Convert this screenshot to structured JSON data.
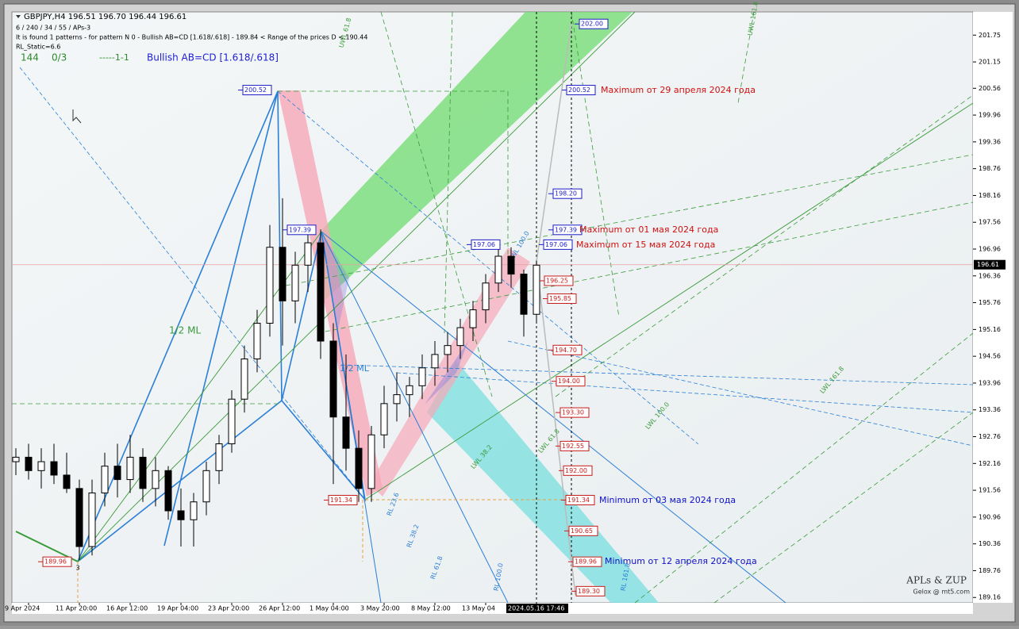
{
  "chart_data": {
    "type": "candlestick",
    "header": [
      "GBPJPY,H4  196.51 196.70 196.44 196.61",
      "6 / 240 / 34 / 55 / APs-3",
      "It is found 1 patterns  -  for pattern N 0 - Bullish AB=CD [1.618/.618] - 189.84 < Range of the prices D < 190.44",
      "RL_Static=6.6"
    ],
    "status": [
      "144",
      "0/3",
      "-----1-1",
      "Bullish AB=CD [1.618/.618]"
    ],
    "watermark": [
      "APLs & ZUP",
      "Gelox @ mt5.com"
    ],
    "line_labels": [
      "1/2 ML",
      "1/2 ML",
      "RL 23.6",
      "RL 38.2",
      "RL 61.8",
      "RL 100.0",
      "RL 161.8",
      "LWL 38.2",
      "LWL 61.8",
      "LWL 100.0",
      "LWL 161.8",
      "UWL 61.8",
      "UWL 161.8",
      "UWL 100.0"
    ],
    "categories": [
      null,
      "9 Apr 2024",
      null,
      null,
      null,
      "11 Apr 20:00",
      null,
      null,
      null,
      "16 Apr 12:00",
      null,
      null,
      null,
      "19 Apr 04:00",
      null,
      null,
      null,
      "23 Apr 20:00",
      null,
      null,
      null,
      "26 Apr 12:00",
      null,
      null,
      null,
      "1 May 04:00",
      null,
      null,
      null,
      "3 May 20:00",
      null,
      null,
      null,
      "8 May 12:00",
      null,
      null,
      null,
      "13 May 04",
      null,
      null,
      null,
      "2024.05.16 17:46"
    ],
    "open": [
      192.2,
      192.3,
      192.0,
      192.2,
      191.9,
      191.6,
      190.3,
      191.5,
      192.1,
      191.8,
      192.3,
      191.6,
      192.0,
      191.1,
      190.9,
      191.3,
      192.0,
      192.6,
      193.6,
      194.5,
      195.3,
      197.0,
      195.8,
      196.6,
      197.1,
      194.9,
      193.2,
      192.5,
      191.6,
      192.8,
      193.5,
      193.7,
      193.9,
      194.3,
      194.6,
      194.8,
      195.2,
      195.6,
      196.2,
      196.8,
      196.4,
      195.5
    ],
    "high": [
      192.5,
      192.6,
      192.5,
      192.6,
      192.4,
      191.8,
      191.8,
      192.4,
      192.6,
      192.8,
      192.5,
      192.3,
      192.1,
      191.6,
      191.5,
      192.2,
      192.8,
      193.8,
      194.8,
      195.6,
      197.5,
      198.1,
      196.9,
      197.4,
      197.4,
      195.3,
      194.6,
      192.9,
      193.0,
      193.9,
      194.2,
      194.1,
      194.6,
      194.9,
      195.1,
      195.4,
      195.8,
      196.4,
      197.0,
      197.0,
      196.5,
      196.7
    ],
    "low": [
      191.9,
      191.8,
      191.6,
      191.7,
      191.5,
      190.0,
      190.1,
      191.2,
      191.4,
      191.5,
      191.3,
      191.2,
      190.9,
      190.3,
      190.3,
      191.0,
      191.7,
      192.4,
      193.3,
      194.2,
      195.0,
      194.8,
      195.3,
      196.0,
      194.5,
      191.7,
      192.0,
      191.3,
      191.3,
      192.5,
      193.1,
      193.2,
      193.6,
      193.9,
      194.2,
      194.5,
      194.9,
      195.3,
      196.0,
      196.1,
      195.0,
      195.3
    ],
    "close": [
      192.3,
      192.0,
      192.2,
      191.9,
      191.6,
      190.3,
      191.5,
      192.1,
      191.8,
      192.3,
      191.6,
      192.0,
      191.1,
      190.9,
      191.3,
      192.0,
      192.6,
      193.6,
      194.5,
      195.3,
      197.0,
      195.8,
      196.6,
      197.1,
      194.9,
      193.2,
      192.5,
      191.6,
      192.8,
      193.5,
      193.7,
      193.9,
      194.3,
      194.6,
      194.8,
      195.2,
      195.6,
      196.2,
      196.8,
      196.4,
      195.5,
      196.6
    ],
    "ylim": [
      189.04,
      202.27
    ],
    "yticks": [
      201.75,
      201.15,
      200.56,
      199.96,
      199.36,
      198.76,
      198.16,
      197.56,
      196.96,
      196.36,
      195.76,
      195.16,
      194.56,
      193.96,
      193.36,
      192.76,
      192.16,
      191.56,
      190.96,
      190.36,
      189.76,
      189.16
    ],
    "current_price": 196.61,
    "upper_levels": [
      {
        "value": 202,
        "label": "202.00"
      },
      200.52,
      {
        "value": 198.2,
        "label": "198.20"
      },
      197.39,
      197.06
    ],
    "lower_levels": [
      196.25,
      195.85,
      {
        "value": 194.7,
        "label": "194.70"
      },
      {
        "value": 194,
        "label": "194.00"
      },
      {
        "value": 193.3,
        "label": "193.30"
      },
      192.55,
      {
        "value": 192,
        "label": "192.00"
      },
      191.34,
      190.65,
      189.96,
      {
        "value": 189.3,
        "label": "189.30"
      }
    ],
    "pattern_points": [
      200.52,
      197.39,
      197.06,
      191.34,
      189.96
    ],
    "annotations": [
      "Maximum от 29 апреля 2024 года",
      "Maximum от 01 мая 2024 года",
      "Maximum от 15 мая 2024 года",
      "Minimum от 03 мая 2024 года",
      "Minimum от 12 апреля 2024 года"
    ],
    "point_label": "3"
  }
}
